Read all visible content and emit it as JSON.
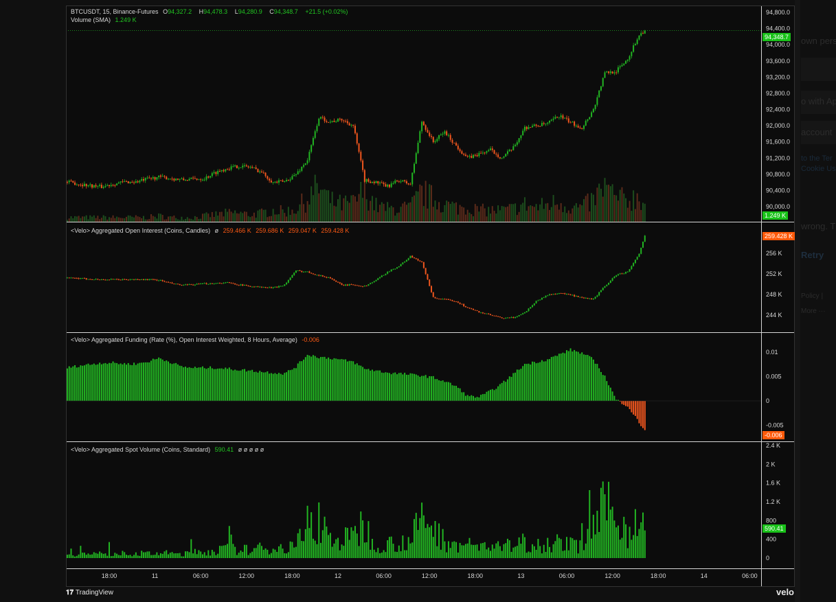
{
  "main_legend": {
    "symbol": "BTCUSDT, 15, Binance-Futures",
    "o_label": "O",
    "o": "94,327.2",
    "h_label": "H",
    "h": "94,478.3",
    "l_label": "L",
    "l": "94,280.9",
    "c_label": "C",
    "c": "94,348.7",
    "change": "+21.5 (+0.02%)",
    "volume_label": "Volume (SMA)",
    "volume_value": "1.249 K"
  },
  "oi_legend": {
    "title": "<Velo> Aggregated Open Interest (Coins, Candles)",
    "symbol": "ø",
    "o": "259.466 K",
    "h": "259.686 K",
    "l": "259.047 K",
    "c": "259.428 K"
  },
  "funding_legend": {
    "title": "<Velo> Aggregated Funding (Rate (%), Open Interest Weighted, 8 Hours, Average)",
    "value": "-0.006"
  },
  "spot_legend": {
    "title": "<Velo> Aggregated Spot Volume (Coins, Standard)",
    "value": "590.41",
    "extra": "ø ø ø ø ø"
  },
  "badges": {
    "price": "94,348.7",
    "volume": "1.249 K",
    "oi": "259.428 K",
    "funding": "-0.006",
    "spot": "590.41"
  },
  "colors": {
    "up": "#22b522",
    "down": "#f0561e",
    "badge_green": "#19c219",
    "badge_orange": "#ff5a0a",
    "background": "#0c0c0c"
  },
  "footer": {
    "brand_left": "TradingView",
    "brand_right": "velo"
  },
  "background_dialog": [
    "own perso",
    "o with Ap",
    "account",
    "to the Ter",
    "Cookie Us",
    "wrong. T",
    "Retry",
    "Policy |",
    "More ···"
  ],
  "chart_data": [
    {
      "type": "candlestick",
      "name": "BTCUSDT, 15, Binance-Futures",
      "x_start": "10 12:30",
      "x_step_hours": 1.5,
      "x_end": "13 16:15",
      "close_values": [
        90610,
        90560,
        90520,
        90490,
        90560,
        90610,
        90610,
        90680,
        90730,
        90700,
        90660,
        90680,
        90700,
        90850,
        90950,
        91000,
        90980,
        90850,
        90600,
        90620,
        90800,
        91150,
        92200,
        92100,
        92150,
        92000,
        90650,
        90600,
        90500,
        90650,
        90550,
        92100,
        91600,
        91850,
        91500,
        91200,
        91300,
        91400,
        91200,
        91450,
        91950,
        92000,
        92050,
        92250,
        92080,
        91950,
        92400,
        93300,
        93350,
        93650,
        94250
      ],
      "last_close": 94348.7,
      "ylim": [
        90000,
        94800
      ],
      "y_ticks": [
        "94,800.0",
        "94,400.0",
        "94,000.0",
        "93,600.0",
        "93,200.0",
        "92,800.0",
        "92,400.0",
        "92,000.0",
        "91,600.0",
        "91,200.0",
        "90,800.0",
        "90,400.0",
        "90,000.0"
      ],
      "y_tick_values": [
        94800,
        94400,
        94000,
        93600,
        93200,
        92800,
        92400,
        92000,
        91600,
        91200,
        90800,
        90400,
        90000
      ],
      "volume_k": [
        0.3,
        0.3,
        0.3,
        0.3,
        0.3,
        0.3,
        0.3,
        0.3,
        0.4,
        0.3,
        0.3,
        0.3,
        0.4,
        0.5,
        0.6,
        0.6,
        0.5,
        0.6,
        0.8,
        0.7,
        0.9,
        1.6,
        2.4,
        1.4,
        1.2,
        1.3,
        2.2,
        1.1,
        0.9,
        0.9,
        1.0,
        2.0,
        1.6,
        1.2,
        1.0,
        1.0,
        0.8,
        0.8,
        0.8,
        0.9,
        1.2,
        1.0,
        1.2,
        1.4,
        1.0,
        1.0,
        1.5,
        2.4,
        1.6,
        1.5,
        1.8
      ]
    },
    {
      "type": "candlestick",
      "name": "<Velo> Aggregated Open Interest (Coins, Candles)",
      "unit": "K",
      "close_values": [
        251.2,
        251.1,
        251.0,
        250.9,
        250.9,
        250.9,
        250.9,
        250.9,
        250.8,
        250.2,
        249.8,
        249.9,
        250.1,
        250.2,
        250.3,
        249.9,
        249.6,
        249.4,
        249.3,
        249.9,
        252.6,
        252.4,
        251.7,
        251.2,
        249.8,
        249.9,
        249.6,
        250.8,
        252.4,
        253.5,
        255.4,
        254.2,
        247.4,
        247.0,
        246.7,
        245.4,
        244.6,
        244.0,
        243.4,
        243.5,
        244.5,
        246.7,
        247.9,
        248.3,
        247.9,
        247.3,
        247.1,
        249.6,
        251.8,
        252.4,
        255.8
      ],
      "last_close": 259.428,
      "ylim": [
        240.5,
        261.5
      ],
      "y_ticks": [
        "256 K",
        "252 K",
        "248 K",
        "244 K"
      ],
      "y_tick_values": [
        256,
        252,
        248,
        244
      ]
    },
    {
      "type": "bar",
      "name": "<Velo> Aggregated Funding (Rate (%), Open Interest Weighted, 8 Hours, Average)",
      "values": [
        0.0068,
        0.0072,
        0.0075,
        0.0078,
        0.0078,
        0.0076,
        0.0076,
        0.008,
        0.0088,
        0.008,
        0.007,
        0.0068,
        0.0068,
        0.0068,
        0.0066,
        0.0064,
        0.0062,
        0.006,
        0.0058,
        0.0056,
        0.007,
        0.0095,
        0.009,
        0.0088,
        0.0084,
        0.008,
        0.0066,
        0.0062,
        0.0058,
        0.0056,
        0.0054,
        0.0052,
        0.0048,
        0.004,
        0.003,
        0.001,
        0.0008,
        0.002,
        0.0035,
        0.0055,
        0.0075,
        0.008,
        0.0085,
        0.0095,
        0.0105,
        0.0098,
        0.0085,
        0.005,
        0.0002,
        -0.001,
        -0.0045
      ],
      "last_value": -0.006,
      "ylim": [
        -0.0075,
        0.0135
      ],
      "y_ticks": [
        "0.01",
        "0.005",
        "0",
        "-0.005"
      ],
      "y_tick_values": [
        0.01,
        0.005,
        0,
        -0.005
      ]
    },
    {
      "type": "bar",
      "name": "<Velo> Aggregated Spot Volume (Coins, Standard)",
      "values": [
        100,
        110,
        90,
        100,
        120,
        100,
        110,
        100,
        120,
        110,
        100,
        130,
        140,
        180,
        220,
        200,
        190,
        230,
        250,
        240,
        300,
        800,
        900,
        450,
        420,
        500,
        700,
        350,
        330,
        380,
        420,
        900,
        700,
        400,
        350,
        300,
        280,
        300,
        260,
        300,
        380,
        320,
        350,
        380,
        300,
        320,
        600,
        1200,
        900,
        700,
        900
      ],
      "last_value": 590.41,
      "ylim": [
        -80,
        2420
      ],
      "y_ticks": [
        "2.4 K",
        "2 K",
        "1.6 K",
        "1.2 K",
        "800",
        "400",
        "0"
      ],
      "y_tick_values": [
        2400,
        2000,
        1600,
        1200,
        800,
        400,
        0
      ]
    }
  ],
  "time_axis": [
    {
      "label": "18:00",
      "t": "10 18:00"
    },
    {
      "label": "11",
      "t": "11 00:00"
    },
    {
      "label": "06:00",
      "t": "11 06:00"
    },
    {
      "label": "12:00",
      "t": "11 12:00"
    },
    {
      "label": "18:00",
      "t": "11 18:00"
    },
    {
      "label": "12",
      "t": "12 00:00"
    },
    {
      "label": "06:00",
      "t": "12 06:00"
    },
    {
      "label": "12:00",
      "t": "12 12:00"
    },
    {
      "label": "18:00",
      "t": "12 18:00"
    },
    {
      "label": "13",
      "t": "13 00:00"
    },
    {
      "label": "06:00",
      "t": "13 06:00"
    },
    {
      "label": "12:00",
      "t": "13 12:00"
    },
    {
      "label": "18:00",
      "t": "13 18:00"
    },
    {
      "label": "14",
      "t": "14 00:00"
    },
    {
      "label": "06:00",
      "t": "14 06:00"
    }
  ]
}
